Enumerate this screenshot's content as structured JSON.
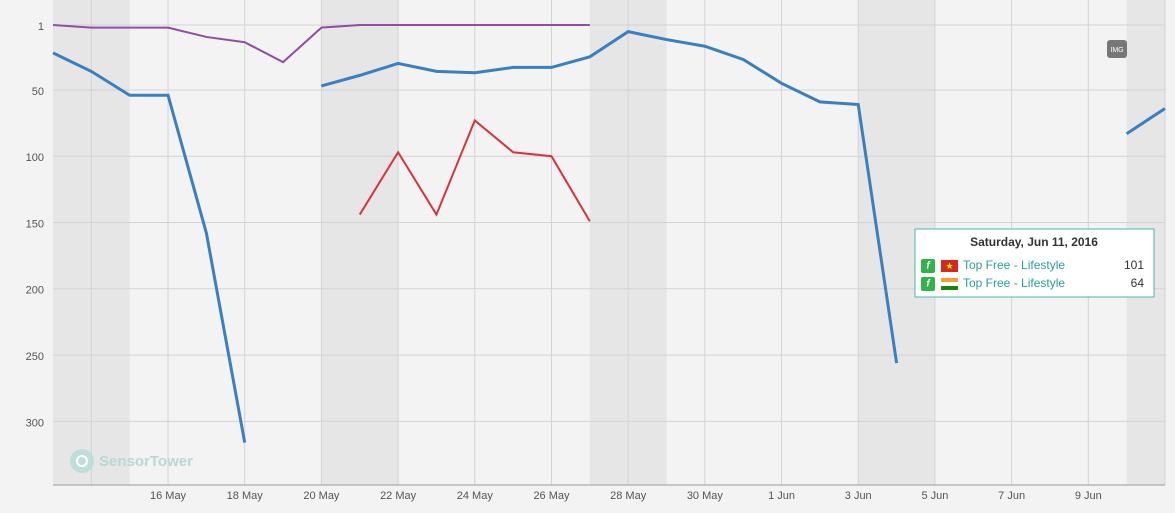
{
  "chart_data": {
    "type": "line",
    "categories": [
      null,
      null,
      null,
      "16 May",
      null,
      "18 May",
      null,
      "20 May",
      null,
      "22 May",
      null,
      "24 May",
      null,
      "26 May",
      null,
      "28 May",
      null,
      "30 May",
      null,
      "1 Jun",
      null,
      "3 Jun",
      null,
      "5 Jun",
      null,
      "7 Jun",
      null,
      "9 Jun",
      null,
      null
    ],
    "series": [
      {
        "color": "#3a7fbf",
        "values": [
          22,
          36,
          54,
          54,
          158,
          316,
          null,
          47,
          39,
          30,
          36,
          37,
          33,
          33,
          25,
          6,
          12,
          17,
          27,
          45,
          59,
          61,
          256,
          null,
          null,
          null,
          null,
          null,
          83,
          64
        ]
      },
      {
        "color": "#8e4ea6",
        "values": [
          1,
          3,
          3,
          3,
          10,
          14,
          29,
          3,
          1,
          1,
          1,
          1,
          1,
          1,
          1,
          null,
          null,
          null,
          null,
          null,
          null,
          null,
          null,
          null,
          null,
          null,
          null,
          null,
          null,
          null
        ]
      },
      {
        "color": "#d9323c",
        "values": [
          null,
          null,
          null,
          null,
          null,
          null,
          null,
          null,
          144,
          97,
          144,
          73,
          97,
          100,
          149,
          null,
          null,
          null,
          null,
          null,
          null,
          null,
          null,
          null,
          null,
          null,
          null,
          null,
          null,
          null
        ]
      }
    ],
    "ylim": [
      1,
      348
    ],
    "y_reversed": true,
    "yticks": [
      1,
      50,
      100,
      150,
      200,
      250,
      300
    ],
    "grid": true,
    "watermark": "SensorTower",
    "badge": "IMG",
    "tooltip": {
      "title": "Saturday, Jun 11, 2016",
      "rows": [
        {
          "label": "Top Free - Lifestyle",
          "value": 101
        },
        {
          "label": "Top Free - Lifestyle",
          "value": 64
        }
      ]
    }
  }
}
